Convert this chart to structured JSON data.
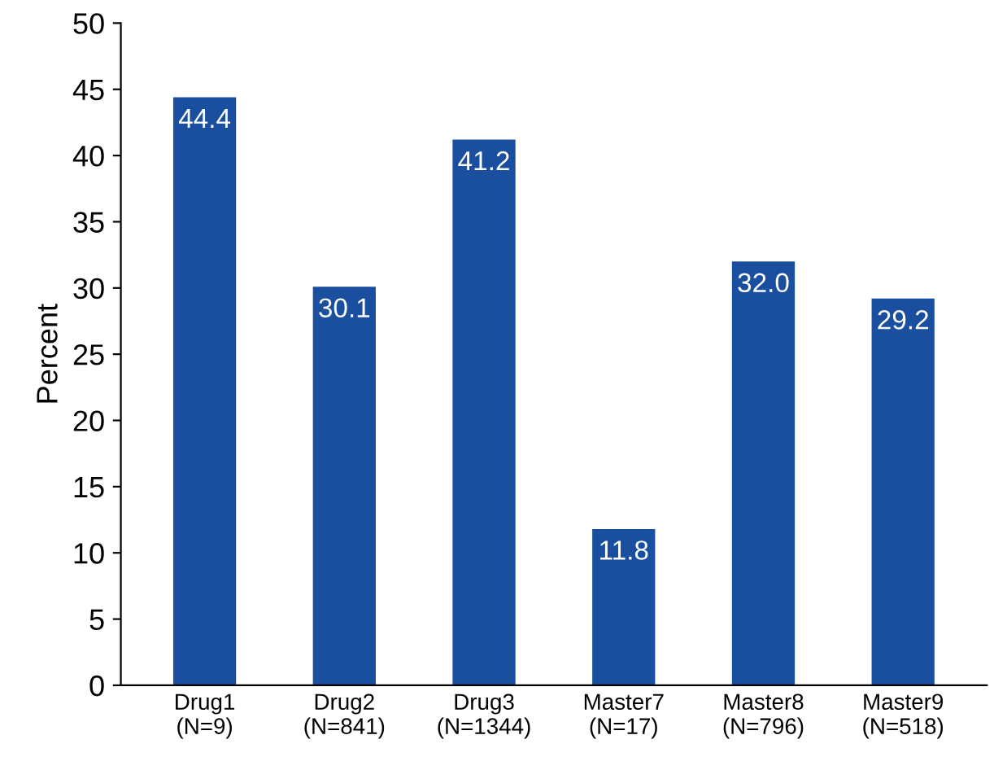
{
  "chart_data": {
    "type": "bar",
    "ylabel": "Percent",
    "categories": [
      "Drug1\n(N=9)",
      "Drug2\n(N=841)",
      "Drug3\n(N=1344)",
      "Master7\n(N=17)",
      "Master8\n(N=796)",
      "Master9\n(N=518)"
    ],
    "values": [
      44.4,
      30.1,
      41.2,
      11.8,
      32.0,
      29.2
    ],
    "value_labels": [
      "44.4",
      "30.1",
      "41.2",
      "11.8",
      "32.0",
      "29.2"
    ],
    "color": "#1a4fa0",
    "ylim": [
      0,
      50
    ],
    "yticks": [
      0,
      5,
      10,
      15,
      20,
      25,
      30,
      35,
      40,
      45,
      50
    ],
    "grid": false
  }
}
